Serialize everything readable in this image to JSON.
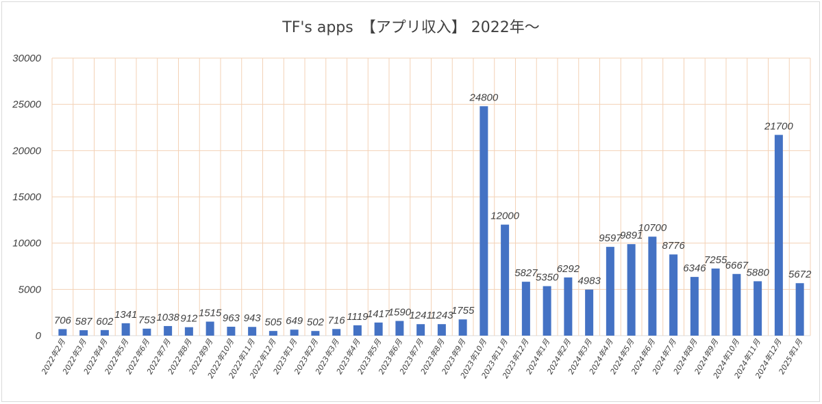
{
  "chart_data": {
    "type": "bar",
    "title": "TF's apps　【アプリ収入】 2022年〜",
    "xlabel": "",
    "ylabel": "",
    "ylim": [
      0,
      30000
    ],
    "yticks": [
      0,
      5000,
      10000,
      15000,
      20000,
      25000,
      30000
    ],
    "grid": true,
    "legend": "none",
    "bar_color": "#4472c4",
    "grid_color": "#f3d1b5",
    "categories": [
      "2022年2月",
      "2022年3月",
      "2022年4月",
      "2022年5月",
      "2022年6月",
      "2022年7月",
      "2022年8月",
      "2022年9月",
      "2022年10月",
      "2022年11月",
      "2022年12月",
      "2023年1月",
      "2023年2月",
      "2023年3月",
      "2023年4月",
      "2023年5月",
      "2023年6月",
      "2023年7月",
      "2023年8月",
      "2023年9月",
      "2023年10月",
      "2023年11月",
      "2023年12月",
      "2024年1月",
      "2024年2月",
      "2024年3月",
      "2024年4月",
      "2024年5月",
      "2024年6月",
      "2024年7月",
      "2024年8月",
      "2024年9月",
      "2024年10月",
      "2024年11月",
      "2024年12月",
      "2025年1月"
    ],
    "values": [
      706,
      587,
      602,
      1341,
      753,
      1038,
      912,
      1515,
      963,
      943,
      505,
      649,
      502,
      716,
      1119,
      1417,
      1590,
      1241,
      1243,
      1755,
      24800,
      12000,
      5827,
      5350,
      6292,
      4983,
      9597,
      9891,
      10700,
      8776,
      6346,
      7255,
      6667,
      5880,
      21700,
      5672
    ]
  }
}
